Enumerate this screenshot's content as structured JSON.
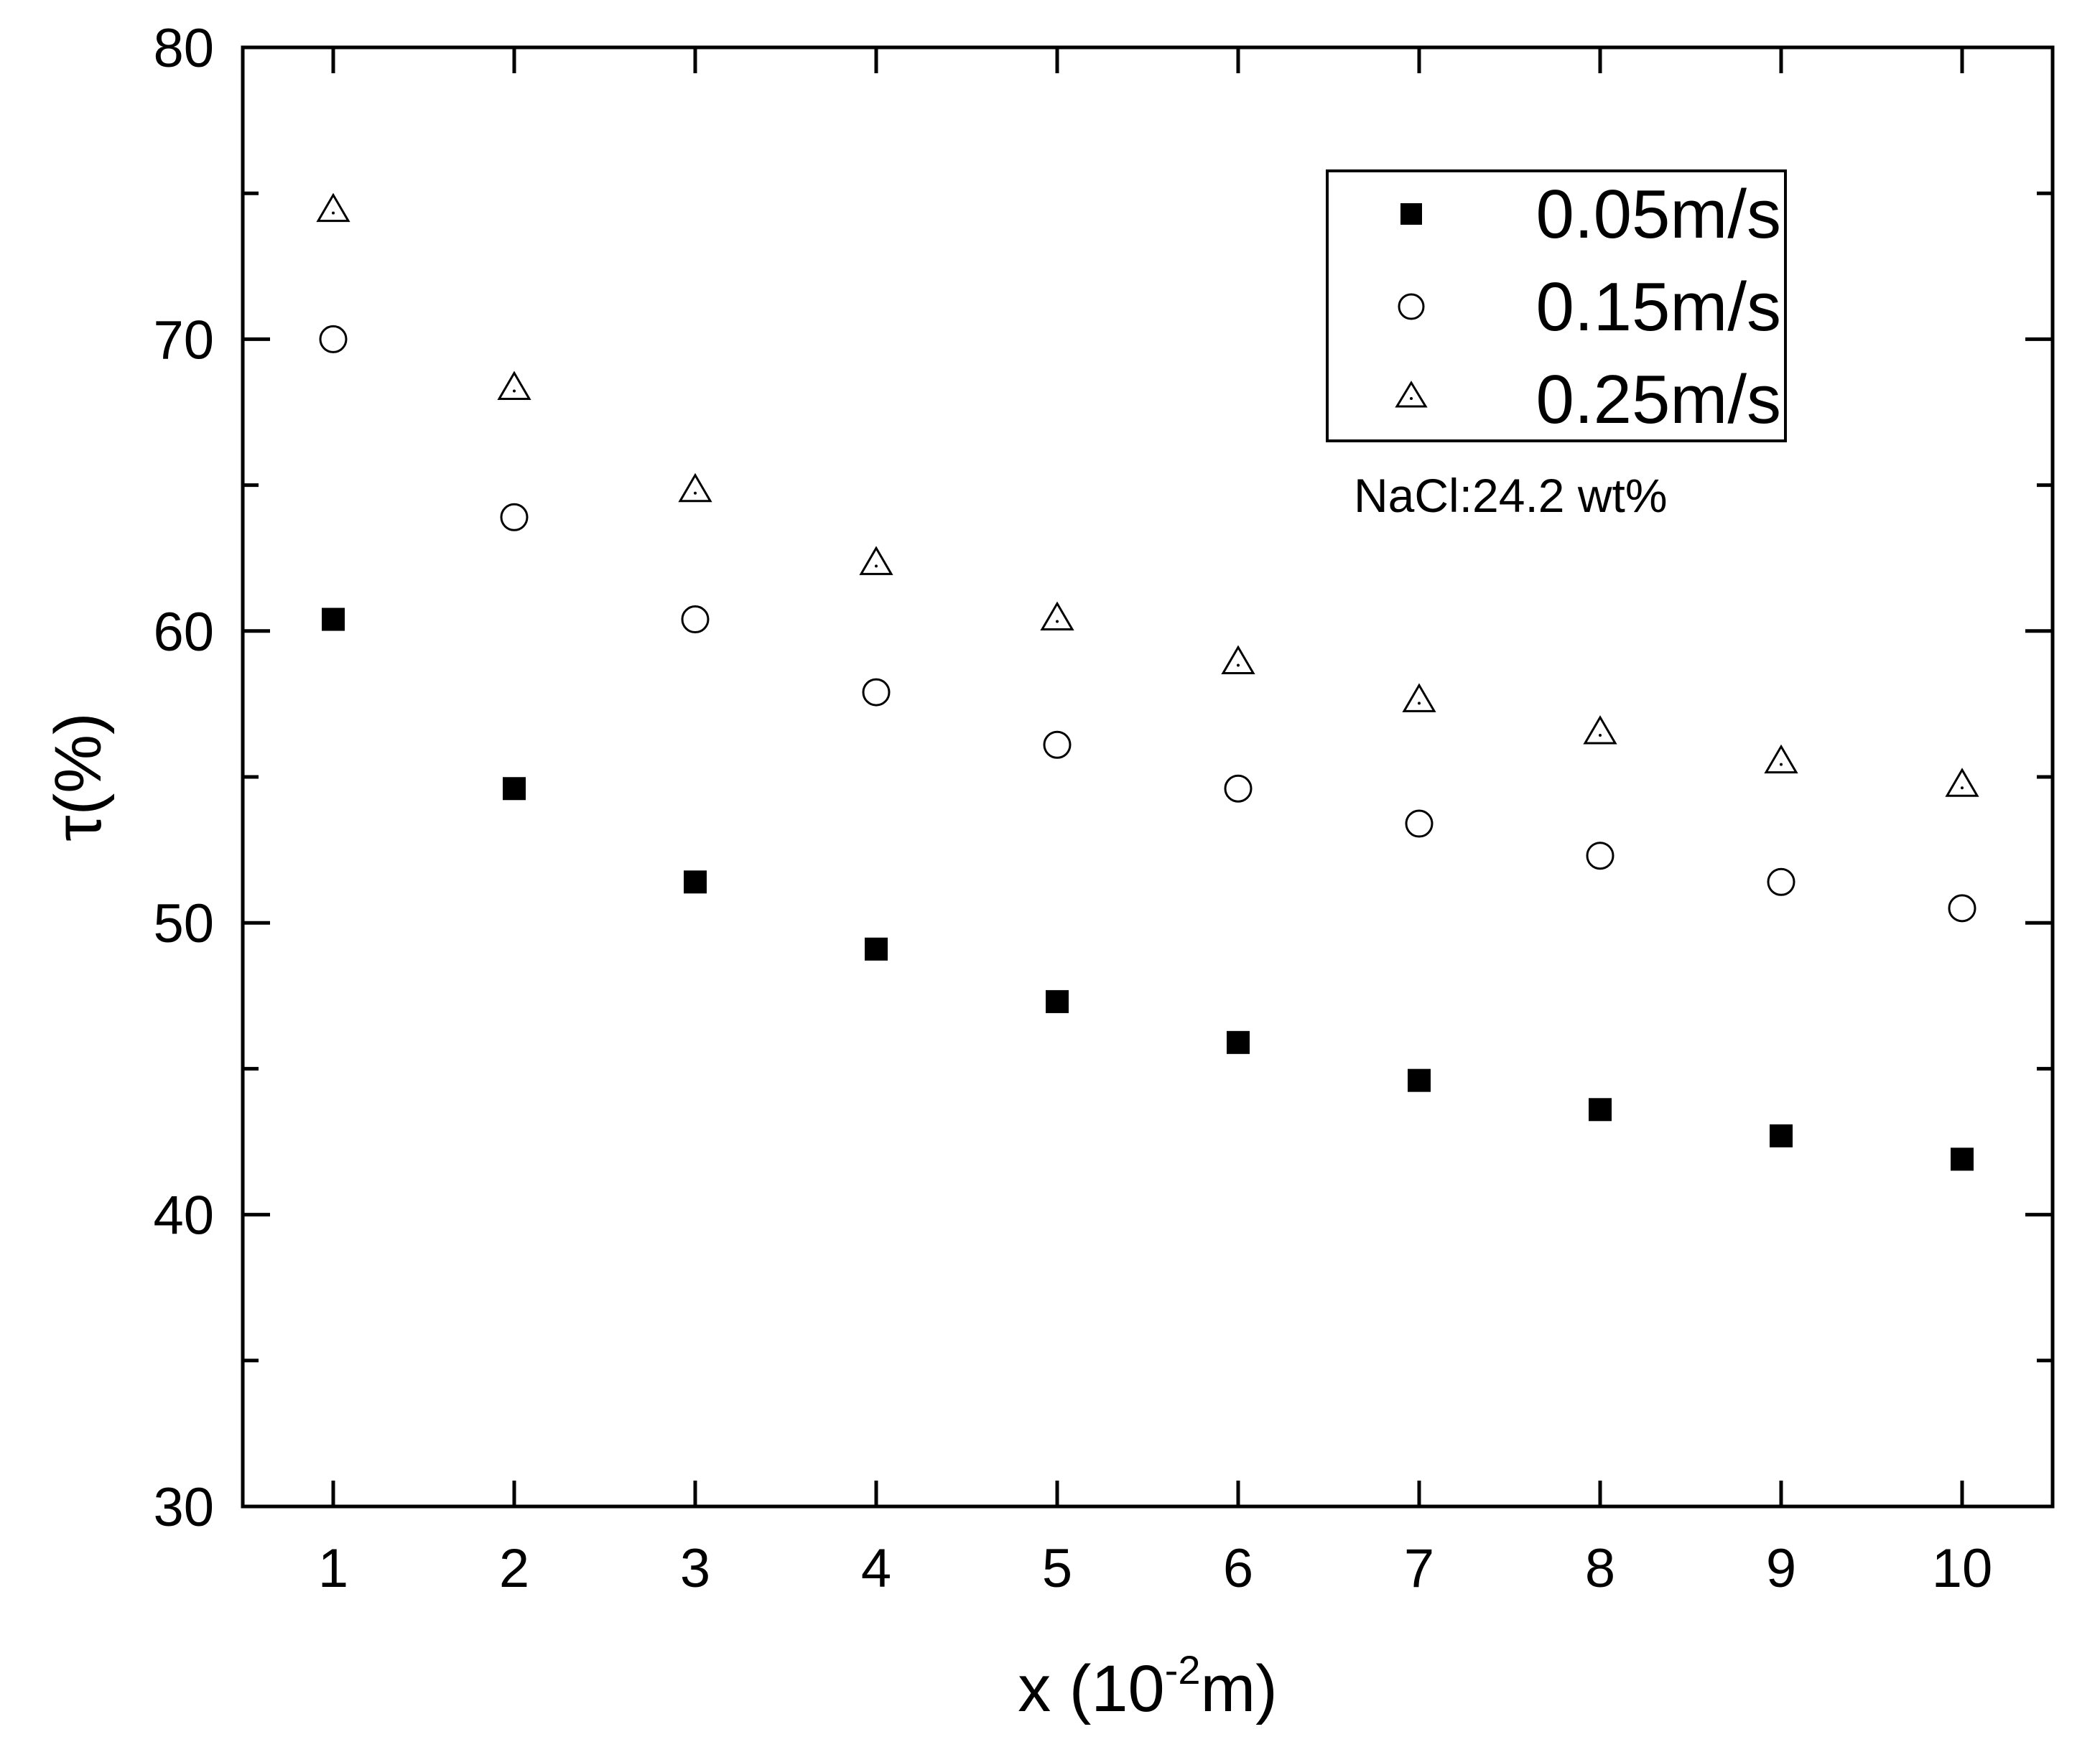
{
  "chart_data": {
    "type": "scatter",
    "title": "",
    "xlabel_prefix": "x (10",
    "xlabel_exponent": "-2",
    "xlabel_suffix": "m)",
    "ylabel": "τ(%)",
    "xlim": [
      0.5,
      10.5
    ],
    "ylim": [
      30,
      80
    ],
    "xticks": [
      "1",
      "2",
      "3",
      "4",
      "5",
      "6",
      "7",
      "8",
      "9",
      "10"
    ],
    "yticks": [
      "30",
      "40",
      "50",
      "60",
      "70",
      "80"
    ],
    "x": [
      1,
      2,
      3,
      4,
      5,
      6,
      7,
      8,
      9,
      10
    ],
    "series": [
      {
        "name": "0.05m/s",
        "marker": "filled-square",
        "values": [
          60.4,
          54.6,
          51.4,
          49.1,
          47.3,
          45.9,
          44.6,
          43.6,
          42.7,
          41.9
        ]
      },
      {
        "name": "0.15m/s",
        "marker": "open-circle",
        "values": [
          70.0,
          63.9,
          60.4,
          57.9,
          56.1,
          54.6,
          53.4,
          52.3,
          51.4,
          50.5
        ]
      },
      {
        "name": "0.25m/s",
        "marker": "open-triangle",
        "values": [
          74.4,
          68.3,
          64.8,
          62.3,
          60.4,
          58.9,
          57.6,
          56.5,
          55.5,
          54.7
        ]
      }
    ],
    "legend_position": "top-right",
    "annotation": "NaCl:24.2 wt%",
    "grid": false,
    "colors": {
      "axis": "#000000",
      "marker": "#000000",
      "background": "#ffffff"
    }
  }
}
